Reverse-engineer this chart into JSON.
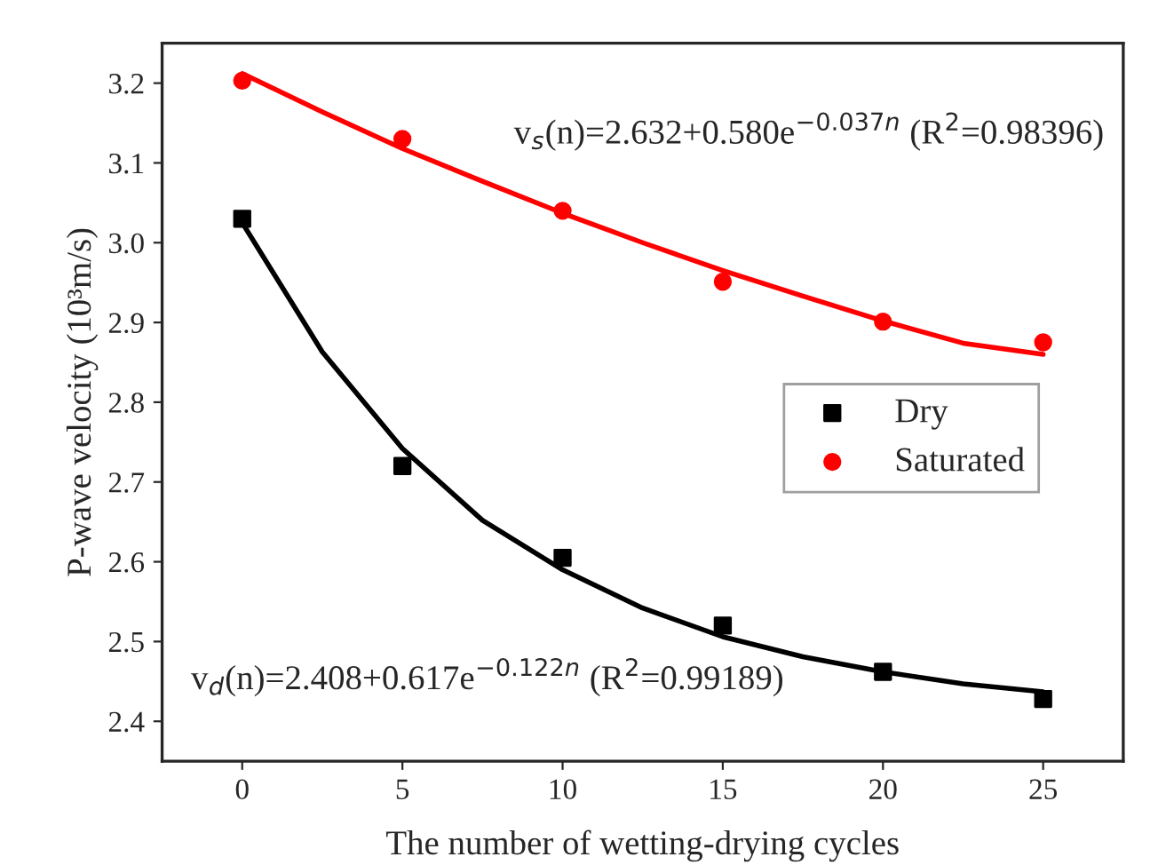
{
  "chart_data": {
    "type": "scatter",
    "xlabel": "The number of wetting-drying cycles",
    "ylabel": "P-wave velocity (10³m/s)",
    "xlim": [
      -2.5,
      27.5
    ],
    "xticks": [
      0,
      5,
      10,
      15,
      20,
      25
    ],
    "ylim": [
      2.35,
      3.25
    ],
    "yticks": [
      2.4,
      2.5,
      2.6,
      2.7,
      2.8,
      2.9,
      {
        "value": 3.0,
        "label": "3.0"
      },
      3.1,
      3.2
    ],
    "grid": false,
    "legend": "center right",
    "series": [
      {
        "name": "Dry",
        "marker": "square",
        "color": "#000000",
        "x": [
          0,
          5,
          10,
          15,
          20,
          25
        ],
        "values": [
          3.03,
          2.72,
          2.605,
          2.52,
          2.462,
          2.428
        ]
      },
      {
        "name": "Saturated",
        "marker": "circle",
        "color": "#ff0000",
        "x": [
          0,
          5,
          10,
          15,
          20,
          25
        ],
        "values": [
          3.203,
          3.13,
          3.04,
          2.951,
          2.901,
          2.875
        ]
      },
      {
        "type": "line",
        "marker": "none",
        "color": "#000000",
        "x": [
          0,
          2.5,
          5,
          7.5,
          10,
          12.5,
          15,
          17.5,
          20,
          22.5,
          25
        ],
        "values": [
          3.025,
          2.863,
          2.742,
          2.652,
          2.59,
          2.542,
          2.506,
          2.481,
          2.462,
          2.447,
          2.437
        ]
      },
      {
        "type": "line",
        "marker": "none",
        "color": "#ff0000",
        "x": [
          0,
          2.5,
          5,
          7.5,
          10,
          12.5,
          15,
          17.5,
          20,
          22.5,
          25
        ],
        "values": [
          3.212,
          3.164,
          3.118,
          3.077,
          3.037,
          3.0,
          2.965,
          2.933,
          2.902,
          2.874,
          2.86
        ]
      }
    ],
    "annotations": [
      "v$_{s}$(n)=2.632+0.580e$^{−0.037n}$ (R$^{2}$=0.98396)",
      "v$_{d}$(n)=2.408+0.617e$^{−0.122n}$ (R$^{2}$=0.99189)"
    ]
  }
}
